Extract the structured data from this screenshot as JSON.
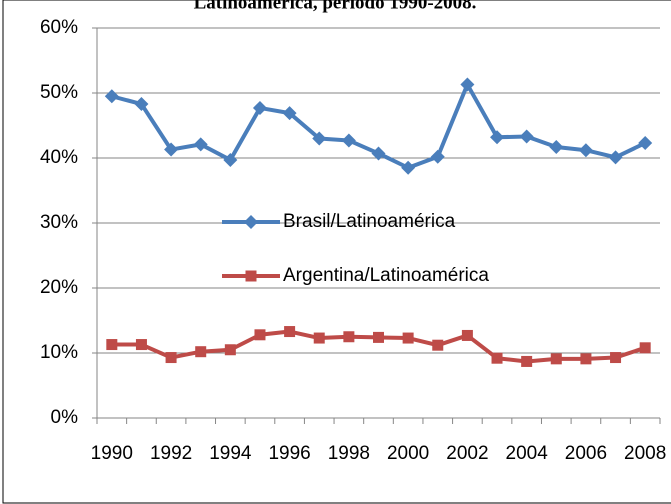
{
  "chart_data": {
    "type": "line",
    "title": "Latinoamérica, período 1990-2008.",
    "x": [
      1990,
      1991,
      1992,
      1993,
      1994,
      1995,
      1996,
      1997,
      1998,
      1999,
      2000,
      2001,
      2002,
      2003,
      2004,
      2005,
      2006,
      2007,
      2008
    ],
    "xlim": [
      1989.5,
      2008.5
    ],
    "xticks": [
      1990,
      1992,
      1994,
      1996,
      1998,
      2000,
      2002,
      2004,
      2006,
      2008
    ],
    "ylim": [
      0,
      60
    ],
    "yticks": [
      {
        "value": 0,
        "label": "0%"
      },
      {
        "value": 10,
        "label": "10%"
      },
      {
        "value": 20,
        "label": "20%"
      },
      {
        "value": 30,
        "label": "30%"
      },
      {
        "value": 40,
        "label": "40%"
      },
      {
        "value": 50,
        "label": "50%"
      },
      {
        "value": 60,
        "label": "60%"
      }
    ],
    "grid": true,
    "legend": "center",
    "series": [
      {
        "name": "Brasil/Latinoamérica",
        "color": "#4a7ebb",
        "marker": "diamond",
        "values": [
          49.5,
          48.3,
          41.3,
          42.1,
          39.7,
          47.7,
          46.9,
          43.0,
          42.7,
          40.7,
          38.5,
          40.2,
          51.3,
          43.2,
          43.3,
          41.7,
          41.2,
          40.1,
          42.3
        ]
      },
      {
        "name": "Argentina/Latinoamérica",
        "color": "#be4b48",
        "marker": "square",
        "values": [
          11.3,
          11.3,
          9.3,
          10.2,
          10.5,
          12.8,
          13.3,
          12.3,
          12.5,
          12.4,
          12.3,
          11.2,
          12.7,
          9.2,
          8.7,
          9.1,
          9.1,
          9.3,
          10.8
        ]
      }
    ]
  }
}
